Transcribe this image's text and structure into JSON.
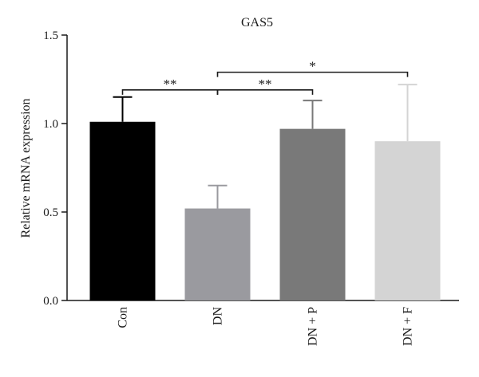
{
  "chart_data": {
    "type": "bar",
    "title": "GAS5",
    "xlabel": "",
    "ylabel": "Relative mRNA expression",
    "ylim": [
      0,
      1.5
    ],
    "yticks": [
      "0.0",
      "0.5",
      "1.0",
      "1.5"
    ],
    "categories": [
      "Con",
      "DN",
      "DN + P",
      "DN + F"
    ],
    "values": [
      1.01,
      0.52,
      0.97,
      0.9
    ],
    "error_upper": [
      0.14,
      0.13,
      0.16,
      0.32
    ],
    "colors": [
      "#000000",
      "#9a9a9f",
      "#797979",
      "#d4d4d4"
    ],
    "grid": false,
    "significance": [
      {
        "from": 0,
        "to": 1,
        "label": "**",
        "y": 1.19
      },
      {
        "from": 1,
        "to": 2,
        "label": "**",
        "y": 1.19
      },
      {
        "from": 1,
        "to": 3,
        "label": "*",
        "y": 1.29
      }
    ]
  }
}
